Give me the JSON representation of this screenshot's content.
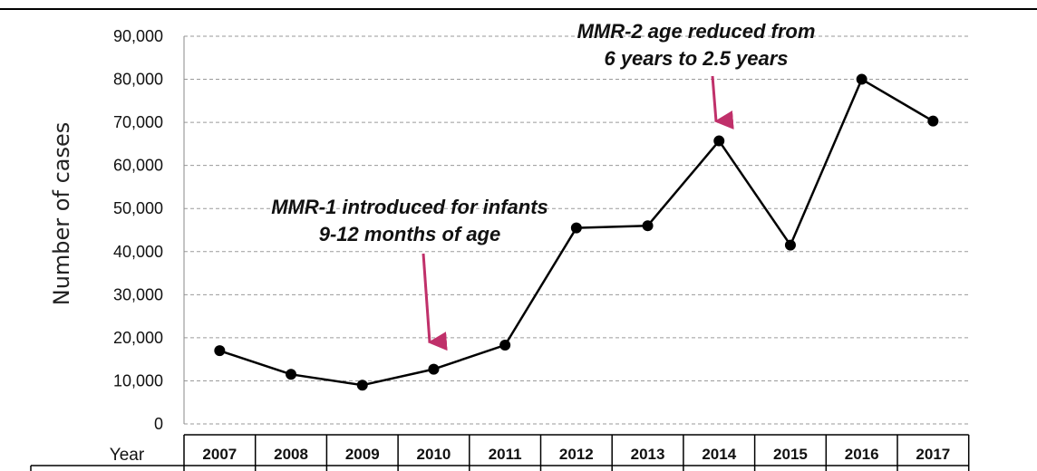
{
  "chart_data": {
    "type": "line",
    "ylabel": "Number of cases",
    "ylim": [
      0,
      90000
    ],
    "y_ticks": [
      "0",
      "10,000",
      "20,000",
      "30,000",
      "40,000",
      "50,000",
      "60,000",
      "70,000",
      "80,000",
      "90,000"
    ],
    "y_tick_values": [
      0,
      10000,
      20000,
      30000,
      40000,
      50000,
      60000,
      70000,
      80000,
      90000
    ],
    "grid": "horizontal dashed",
    "table_header": "Year",
    "categories": [
      "2007",
      "2008",
      "2009",
      "2010",
      "2011",
      "2012",
      "2013",
      "2014",
      "2015",
      "2016",
      "2017"
    ],
    "values": [
      17000,
      11500,
      9000,
      12700,
      18300,
      45500,
      46000,
      65700,
      41500,
      80000,
      70300
    ],
    "line_color": "#000000",
    "annotations": [
      {
        "lines": [
          "MMR-1 introduced for infants",
          "9-12 months of age"
        ],
        "target": "2010",
        "arrow_color": "#c0306a"
      },
      {
        "lines": [
          "MMR-2 age reduced from",
          "6 years to 2.5 years"
        ],
        "target": "2014",
        "arrow_color": "#c0306a"
      }
    ]
  }
}
